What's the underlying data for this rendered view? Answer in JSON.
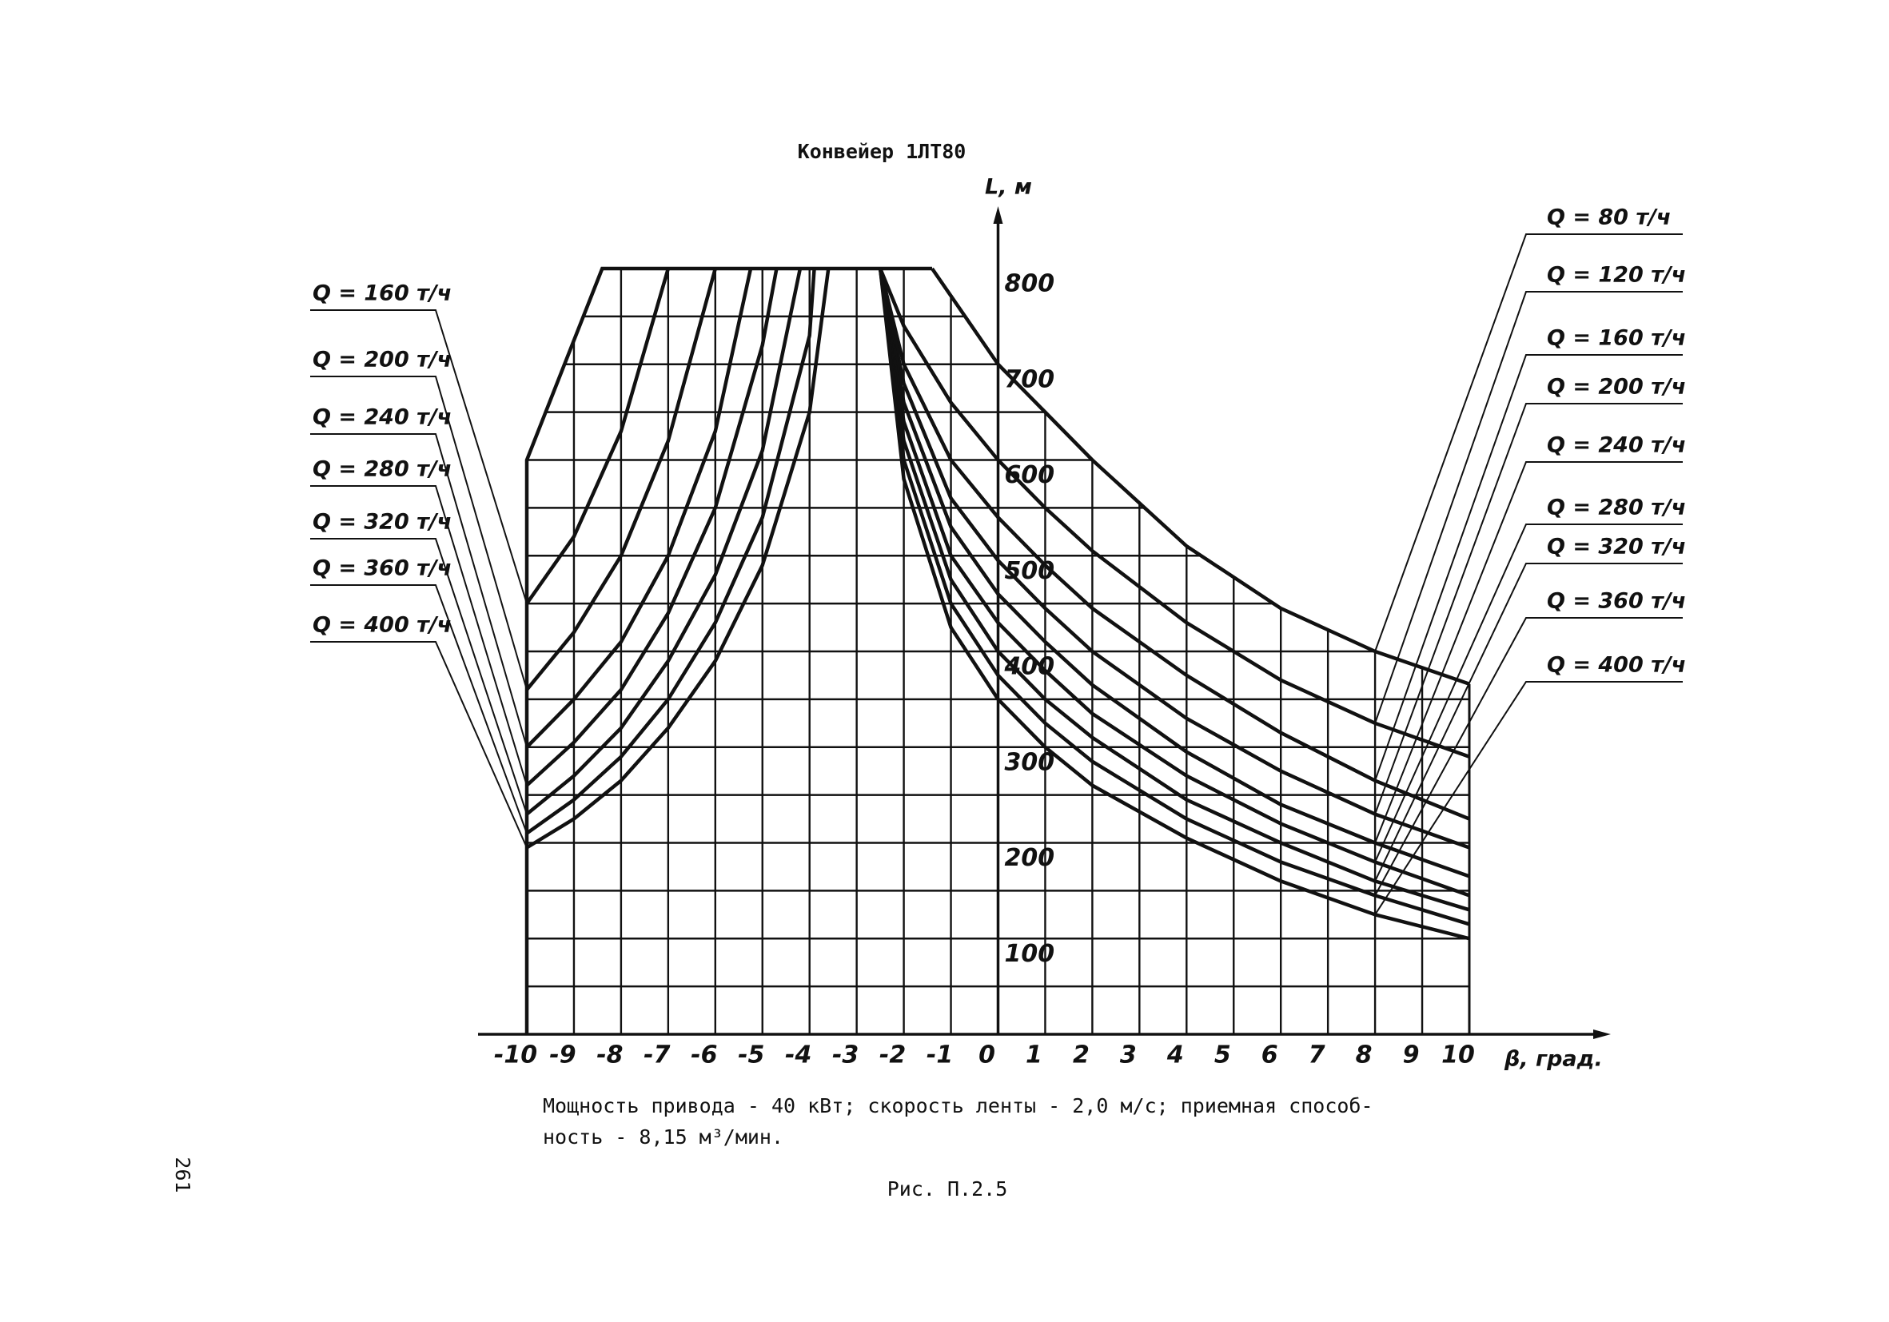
{
  "chart_data": {
    "type": "line",
    "title": "Конвейер 1ЛТ80",
    "y_label": "L, м",
    "x_label": "β, град.",
    "notes": [
      "Мощность привода - 40 кВт; скорость ленты - 2,0 м/с; приемная способ-",
      "ность - 8,15 м³/мин."
    ],
    "figure_label": "Рис. П.2.5",
    "page_number": "261",
    "xlim": [
      -10,
      10
    ],
    "ylim": [
      0,
      800
    ],
    "xticks": [
      -10,
      -9,
      -8,
      -7,
      -6,
      -5,
      -4,
      -3,
      -2,
      -1,
      0,
      1,
      2,
      3,
      4,
      5,
      6,
      7,
      8,
      9,
      10
    ],
    "yticks": [
      100,
      200,
      300,
      400,
      500,
      600,
      700,
      800
    ],
    "grid": true,
    "color": "#111111",
    "envelope": {
      "x": [
        -10,
        -10,
        -8.4,
        -1.4
      ],
      "values": [
        0,
        600,
        800,
        800
      ]
    },
    "series": [
      {
        "name": "Q = 160 т/ч",
        "x": [
          -10,
          -9,
          -8,
          -7
        ],
        "values": [
          450,
          520,
          630,
          800
        ]
      },
      {
        "name": "Q = 200 т/ч",
        "x": [
          -10,
          -9,
          -8,
          -7,
          -6
        ],
        "values": [
          360,
          420,
          500,
          620,
          800
        ]
      },
      {
        "name": "Q = 240 т/ч",
        "x": [
          -10,
          -9,
          -8,
          -7,
          -6,
          -5.25
        ],
        "values": [
          300,
          350,
          410,
          500,
          630,
          800
        ]
      },
      {
        "name": "Q = 280 т/ч",
        "x": [
          -10,
          -9,
          -8,
          -7,
          -6,
          -5,
          -4.7
        ],
        "values": [
          260,
          305,
          360,
          440,
          550,
          720,
          800
        ]
      },
      {
        "name": "Q = 320 т/ч",
        "x": [
          -10,
          -9,
          -8,
          -7,
          -6,
          -5,
          -4.2
        ],
        "values": [
          230,
          270,
          320,
          390,
          480,
          610,
          800
        ]
      },
      {
        "name": "Q = 360 т/ч",
        "x": [
          -10,
          -9,
          -8,
          -7,
          -6,
          -5,
          -4,
          -3.9
        ],
        "values": [
          210,
          245,
          290,
          350,
          430,
          540,
          730,
          800
        ]
      },
      {
        "name": "Q = 400 т/ч",
        "x": [
          -10,
          -9,
          -8,
          -7,
          -6,
          -5,
          -4,
          -3.6
        ],
        "values": [
          195,
          225,
          265,
          320,
          390,
          490,
          650,
          800
        ]
      },
      {
        "name": "Q = 80 т/ч",
        "x": [
          -1.4,
          0,
          1,
          2,
          4,
          6,
          8,
          10
        ],
        "values": [
          800,
          700,
          650,
          600,
          510,
          445,
          400,
          366
        ]
      },
      {
        "name": "Q = 120 т/ч",
        "x": [
          -2.5,
          -2,
          -1,
          0,
          1,
          2,
          4,
          6,
          8,
          10
        ],
        "values": [
          800,
          740,
          660,
          600,
          550,
          505,
          430,
          370,
          325,
          290
        ]
      },
      {
        "name": "Q = 160 т/ч",
        "x": [
          -2.5,
          -2,
          -1,
          0,
          1,
          2,
          4,
          6,
          8,
          10
        ],
        "values": [
          800,
          700,
          600,
          540,
          490,
          445,
          375,
          315,
          265,
          225
        ]
      },
      {
        "name": "Q = 200 т/ч",
        "x": [
          -2.5,
          -2,
          -1,
          0,
          1,
          2,
          4,
          6,
          8,
          10
        ],
        "values": [
          800,
          680,
          560,
          495,
          445,
          400,
          330,
          275,
          230,
          195
        ]
      },
      {
        "name": "Q = 240 т/ч",
        "x": [
          -2.5,
          -2,
          -1,
          0,
          1,
          2,
          4,
          6,
          8,
          10
        ],
        "values": [
          800,
          660,
          530,
          460,
          410,
          365,
          295,
          240,
          200,
          165
        ]
      },
      {
        "name": "Q = 280 т/ч",
        "x": [
          -2.5,
          -2,
          -1,
          0,
          1,
          2,
          4,
          6,
          8,
          10
        ],
        "values": [
          800,
          640,
          500,
          430,
          380,
          335,
          270,
          220,
          180,
          145
        ]
      },
      {
        "name": "Q = 320 т/ч",
        "x": [
          -2.5,
          -2,
          -1,
          0,
          1,
          2,
          4,
          6,
          8,
          10
        ],
        "values": [
          800,
          620,
          475,
          400,
          350,
          310,
          245,
          200,
          160,
          130
        ]
      },
      {
        "name": "Q = 360 т/ч",
        "x": [
          -2.5,
          -2,
          -1,
          0,
          1,
          2,
          4,
          6,
          8,
          10
        ],
        "values": [
          800,
          600,
          450,
          375,
          325,
          285,
          225,
          180,
          145,
          115
        ]
      },
      {
        "name": "Q = 400 т/ч",
        "x": [
          -2.5,
          -2,
          -1,
          0,
          1,
          2,
          4,
          6,
          8,
          10
        ],
        "values": [
          800,
          580,
          425,
          350,
          300,
          260,
          205,
          160,
          125,
          100
        ]
      }
    ]
  }
}
